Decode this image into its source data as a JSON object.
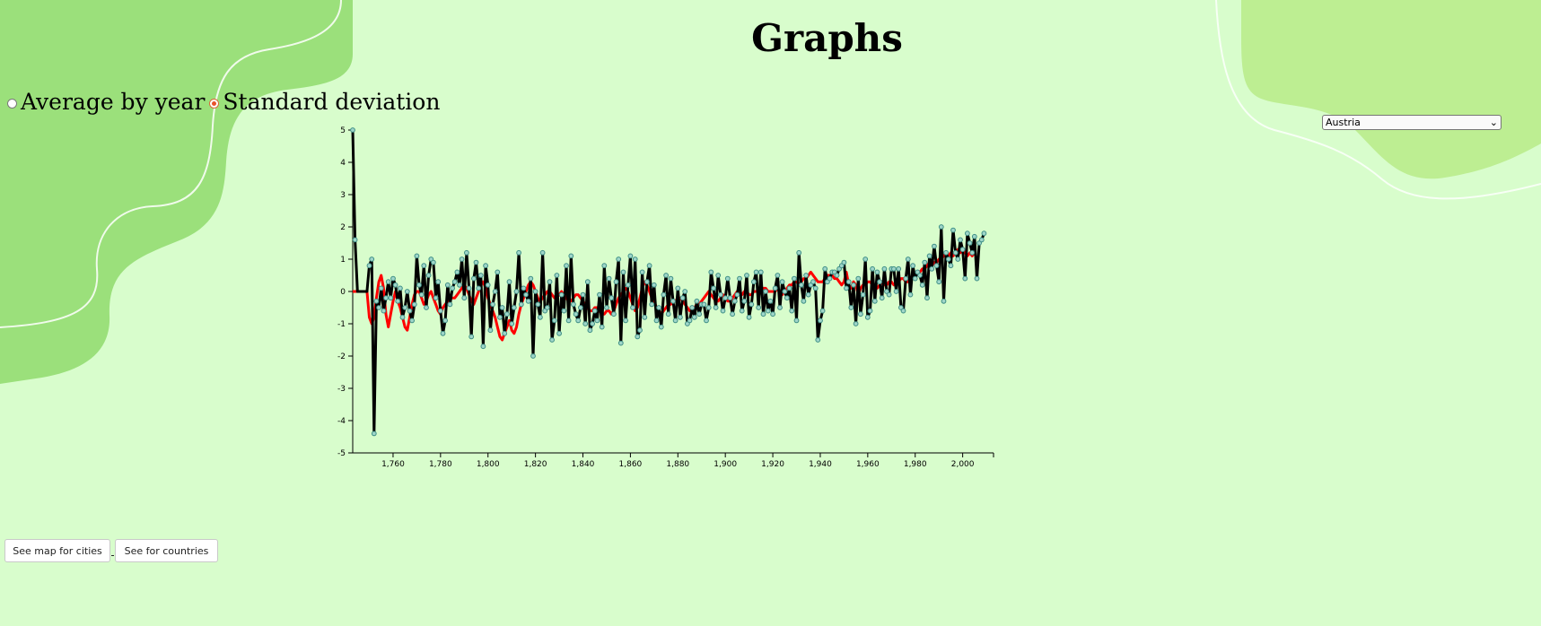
{
  "page": {
    "title": "Graphs"
  },
  "mode_selector": {
    "options": [
      {
        "label": "Average by year",
        "checked": false
      },
      {
        "label": "Standard deviation",
        "checked": true
      }
    ]
  },
  "country_select": {
    "selected": "Austria"
  },
  "buttons": {
    "cities_label": "See map for cities",
    "countries_label": "See for countries"
  },
  "colors": {
    "background": "#d8fdcc",
    "blob_dark": "#9be07b",
    "blob_light": "#bdee92",
    "series_black": "#000000",
    "series_red": "#ff0000",
    "point_fill": "#9fd5c8",
    "point_stroke": "#3f8f86"
  },
  "chart_data": {
    "type": "line",
    "xlim": [
      1743,
      2013
    ],
    "ylim": [
      -5,
      5
    ],
    "x_ticks": [
      1760,
      1780,
      1800,
      1820,
      1840,
      1860,
      1880,
      1900,
      1920,
      1940,
      1960,
      1980,
      2000
    ],
    "x_tick_labels": [
      "1,760",
      "1,780",
      "1,800",
      "1,820",
      "1,840",
      "1,860",
      "1,880",
      "1,900",
      "1,920",
      "1,940",
      "1,960",
      "1,980",
      "2,000"
    ],
    "y_ticks": [
      -5,
      -4,
      -3,
      -2,
      -1,
      0,
      1,
      2,
      3,
      4,
      5
    ],
    "y_tick_labels": [
      "-5",
      "-4",
      "-3",
      "-2",
      "-1",
      "0",
      "1",
      "2",
      "3",
      "4",
      "5"
    ],
    "series": [
      {
        "style": "black-line-with-points",
        "x_start": 1743,
        "values": [
          5.0,
          1.6,
          0,
          0,
          0,
          0,
          0,
          0.8,
          1.0,
          -4.4,
          -0.3,
          -0.5,
          0.1,
          -0.6,
          -0.2,
          0.3,
          -0.2,
          0.4,
          0.2,
          -0.3,
          0.1,
          -0.8,
          -0.5,
          0.0,
          -0.6,
          -0.9,
          -0.4,
          1.1,
          0.2,
          -0.1,
          0.8,
          -0.5,
          0.5,
          1.0,
          0.9,
          -0.2,
          0.3,
          -0.6,
          -1.3,
          -0.9,
          0.2,
          -0.4,
          0.1,
          0.3,
          0.6,
          0.2,
          1.0,
          -0.2,
          1.2,
          0.1,
          -1.4,
          0.4,
          0.9,
          0.1,
          0.5,
          -1.7,
          0.8,
          0.2,
          -1.2,
          -0.4,
          0.0,
          0.6,
          -0.8,
          -0.5,
          -1.3,
          -0.7,
          0.3,
          -1.0,
          -0.5,
          0.0,
          1.2,
          -0.4,
          0.1,
          -0.1,
          -0.3,
          0.4,
          -2.0,
          0.0,
          -0.4,
          -0.8,
          1.2,
          -0.6,
          -0.5,
          0.3,
          -1.5,
          -0.9,
          0.5,
          -1.3,
          -0.1,
          -0.6,
          0.8,
          -0.9,
          1.1,
          -0.4,
          -0.7,
          -0.9,
          -0.5,
          -0.1,
          -1.0,
          0.3,
          -1.2,
          -1.0,
          -0.6,
          -0.9,
          -0.1,
          -1.1,
          0.8,
          -0.5,
          0.4,
          -0.2,
          -0.7,
          0.3,
          1.0,
          -1.6,
          0.6,
          -0.9,
          0.2,
          1.1,
          -0.5,
          1.0,
          -1.4,
          -1.2,
          0.6,
          -0.8,
          0.3,
          0.8,
          -0.4,
          0.2,
          -0.9,
          -0.5,
          -1.1,
          -0.1,
          0.5,
          -0.7,
          0.4,
          -0.3,
          -0.9,
          0.1,
          -0.8,
          -0.2,
          0.0,
          -1.0,
          -0.9,
          -0.5,
          -0.8,
          -0.3,
          -0.7,
          -0.4,
          -0.4,
          -0.9,
          -0.5,
          0.6,
          0.1,
          -0.5,
          0.5,
          -0.1,
          -0.6,
          -0.2,
          0.4,
          -0.2,
          -0.7,
          -0.3,
          -0.1,
          0.4,
          -0.6,
          -0.3,
          0.5,
          -0.8,
          -0.4,
          0.3,
          0.6,
          -0.5,
          0.6,
          -0.7,
          0.0,
          -0.6,
          -0.3,
          -0.7,
          0.1,
          0.5,
          -0.5,
          0.3,
          0.0,
          -0.2,
          0.1,
          -0.6,
          0.4,
          -0.9,
          1.2,
          0.2,
          -0.3,
          0.5,
          -0.1,
          0.2,
          0.3,
          0.1,
          -1.5,
          -0.9,
          -0.6,
          0.7,
          0.3,
          0.4,
          0.6,
          0.6,
          0.5,
          0.7,
          0.8,
          0.9,
          0.1,
          0.3,
          -0.5,
          0.2,
          -1.0,
          0.4,
          -0.7,
          -0.1,
          1.0,
          -0.8,
          -0.6,
          0.7,
          -0.3,
          0.6,
          0.3,
          -0.2,
          0.7,
          0.0,
          -0.1,
          0.7,
          0.7,
          0.0,
          0.7,
          -0.5,
          -0.6,
          0.4,
          1.0,
          -0.1,
          0.8,
          0.4,
          0.6,
          0.5,
          0.2,
          0.9,
          -0.2,
          1.1,
          0.7,
          1.4,
          0.8,
          0.3,
          2.0,
          -0.3,
          1.2,
          1.0,
          0.8,
          1.9,
          1.2,
          1.0,
          1.6,
          1.3,
          0.4,
          1.8,
          1.5,
          1.2,
          1.7,
          0.4,
          1.5,
          1.6,
          1.8
        ]
      },
      {
        "style": "red-smoothed-line",
        "x_start": 1743,
        "values": [
          0,
          0,
          0,
          0,
          0,
          0,
          0,
          -0.8,
          -1.0,
          -0.8,
          -0.2,
          0.3,
          0.5,
          0.1,
          -0.7,
          -1.1,
          -0.7,
          -0.3,
          0.0,
          -0.3,
          -0.5,
          -0.8,
          -1.1,
          -1.2,
          -0.8,
          -0.4,
          -0.1,
          0.0,
          0.0,
          -0.2,
          -0.4,
          -0.3,
          -0.1,
          0.0,
          -0.2,
          -0.4,
          -0.6,
          -0.7,
          -0.5,
          -0.4,
          -0.3,
          -0.2,
          -0.2,
          -0.2,
          -0.1,
          0.0,
          0.1,
          0.2,
          0.1,
          -0.1,
          -0.3,
          -0.4,
          -0.2,
          0.0,
          0.2,
          0.3,
          0.1,
          -0.2,
          -0.4,
          -0.6,
          -0.8,
          -1.1,
          -1.4,
          -1.5,
          -1.3,
          -1.1,
          -0.9,
          -1.2,
          -1.3,
          -1.1,
          -0.7,
          -0.4,
          -0.2,
          0.0,
          0.2,
          0.3,
          0.2,
          0.0,
          -0.2,
          -0.3,
          -0.2,
          -0.1,
          0.0,
          0.0,
          -0.1,
          -0.2,
          -0.2,
          -0.1,
          0.0,
          -0.1,
          -0.2,
          -0.3,
          -0.3,
          -0.2,
          -0.1,
          -0.1,
          -0.2,
          -0.3,
          -0.4,
          -0.5,
          -0.6,
          -0.6,
          -0.5,
          -0.5,
          -0.6,
          -0.7,
          -0.7,
          -0.6,
          -0.6,
          -0.7,
          -0.6,
          -0.4,
          -0.2,
          -0.1,
          0.0,
          0.1,
          0.0,
          -0.2,
          -0.4,
          -0.6,
          -0.5,
          -0.2,
          0.1,
          0.3,
          0.2,
          0.0,
          -0.2,
          -0.3,
          -0.5,
          -0.6,
          -0.7,
          -0.6,
          -0.5,
          -0.4,
          -0.4,
          -0.3,
          -0.3,
          -0.2,
          -0.2,
          -0.3,
          -0.4,
          -0.5,
          -0.6,
          -0.6,
          -0.5,
          -0.4,
          -0.4,
          -0.3,
          -0.2,
          -0.1,
          0.0,
          -0.1,
          -0.2,
          -0.3,
          -0.3,
          -0.2,
          -0.1,
          -0.2,
          -0.3,
          -0.3,
          -0.2,
          -0.1,
          0.0,
          -0.1,
          -0.1,
          0.0,
          0.0,
          -0.1,
          -0.1,
          0.0,
          0.0,
          0.0,
          0.1,
          0.1,
          0.1,
          0.0,
          0.0,
          0.0,
          0.0,
          0.1,
          0.0,
          -0.1,
          0.0,
          0.1,
          0.2,
          0.2,
          0.3,
          0.3,
          0.2,
          0.3,
          0.4,
          0.4,
          0.5,
          0.6,
          0.5,
          0.4,
          0.3,
          0.3,
          0.3,
          0.4,
          0.5,
          0.5,
          0.5,
          0.4,
          0.4,
          0.3,
          0.2,
          0.3,
          0.6,
          0.2,
          0.1,
          0.3,
          0.2,
          -0.1,
          0.1,
          0.2,
          0.2,
          0.3,
          0.3,
          0.2,
          0.1,
          0.1,
          0.2,
          0.3,
          0.2,
          0.2,
          0.3,
          0.3,
          0.2,
          0.2,
          0.3,
          0.4,
          0.4,
          0.3,
          0.3,
          0.4,
          0.5,
          0.5,
          0.6,
          0.6,
          0.7,
          0.7,
          0.8,
          0.9,
          0.8,
          0.9,
          0.9,
          1.0,
          1.0,
          1.1,
          1.2,
          1.1,
          1.2,
          1.1,
          1.2,
          1.3,
          1.2,
          1.3,
          1.2,
          1.1,
          1.2,
          1.1,
          1.2
        ]
      }
    ]
  }
}
